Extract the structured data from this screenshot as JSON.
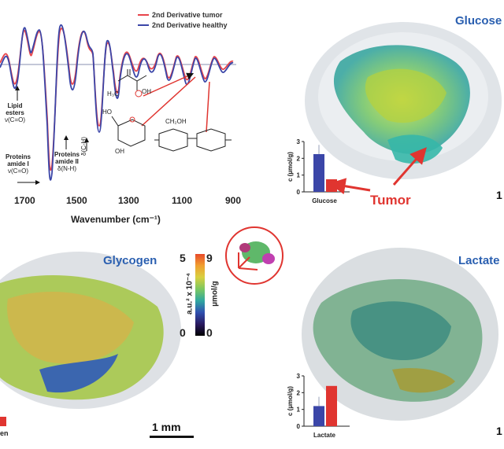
{
  "spectrum": {
    "legend": {
      "tumor": "2nd Derivative tumor",
      "healthy": "2nd Derivative healthy",
      "tumor_color": "#e8444a",
      "healthy_color": "#3b46a8"
    },
    "xaxis_label": "Wavenumber (cm⁻¹)",
    "xticks": [
      "1700",
      "1500",
      "1300",
      "1100",
      "900"
    ],
    "annotations": {
      "lipid": [
        "Lipid",
        "esters",
        "ν(C=O)"
      ],
      "amide1": [
        "Proteins",
        "amide I",
        "ν(C=O)"
      ],
      "amide2": [
        "Proteins",
        "amide II",
        "δ(N-H)"
      ],
      "ch": "δ(C-H)"
    },
    "molecule_labels": {
      "lactate_h3c": "H₃C",
      "lactate_oh": "OH",
      "glucose_ho": "HO",
      "glucose_oh": "OH",
      "glycogen_ch2oh": "CH₂OH"
    }
  },
  "panels": {
    "glucose": {
      "title": "Glucose",
      "scale_fragment": "1"
    },
    "glycogen": {
      "title": "Glycogen",
      "scale": "1 mm",
      "bar_label_fragment": "en"
    },
    "lactate": {
      "title": "Lactate",
      "scale_fragment": "1"
    }
  },
  "colorbar": {
    "left_ticks": [
      "5",
      "0"
    ],
    "right_ticks": [
      "9",
      "0"
    ],
    "left_label": "a.u.² x 10⁻⁴",
    "right_label": "µmol/g"
  },
  "tumor_label": "Tumor",
  "chart_data": [
    {
      "type": "bar",
      "categories": [
        "Glucose"
      ],
      "series": [
        {
          "values": [
            2.25
          ]
        },
        {
          "values": [
            0.75
          ]
        }
      ],
      "ylabel": "c (µmol/g)",
      "ylim": [
        0,
        3
      ],
      "yticks": [
        "0",
        "1",
        "2",
        "3"
      ],
      "colors": [
        "#3b46a8",
        "#e03530"
      ]
    },
    {
      "type": "bar",
      "categories": [
        "Lactate"
      ],
      "series": [
        {
          "values": [
            1.2
          ]
        },
        {
          "values": [
            2.4
          ]
        }
      ],
      "ylabel": "c (µmol/g)",
      "ylim": [
        0,
        3
      ],
      "yticks": [
        "0",
        "1",
        "2",
        "3"
      ],
      "colors": [
        "#3b46a8",
        "#e03530"
      ]
    }
  ]
}
